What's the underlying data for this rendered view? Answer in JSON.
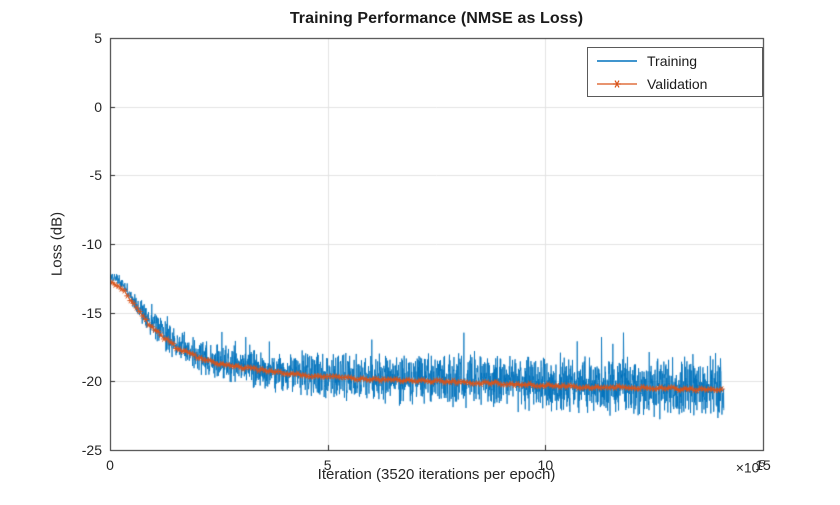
{
  "chart_data": {
    "type": "line",
    "title": "Training Performance (NMSE as Loss)",
    "xlabel": "Iteration (3520 iterations per epoch)",
    "ylabel": "Loss (dB)",
    "x_exponent": {
      "base": "×10",
      "power": "5"
    },
    "xlim": [
      0,
      15
    ],
    "ylim": [
      -25,
      5
    ],
    "xticks": [
      0,
      5,
      10,
      15
    ],
    "yticks": [
      5,
      0,
      -5,
      -10,
      -15,
      -20,
      -25
    ],
    "grid": true,
    "axis_color": "#262626",
    "grid_color": "#e3e3e3",
    "x_units_per_tick_label": 100000,
    "legend": {
      "location": "northeast"
    },
    "series": [
      {
        "name": "Training",
        "color": "#0072BD",
        "style": "noisy-line",
        "initial_spike": {
          "x": 0,
          "y_top": 5
        },
        "x_end": 14.1,
        "mean_curve": {
          "x": [
            0,
            0.15,
            0.3,
            0.5,
            0.8,
            1.0,
            1.5,
            2.0,
            2.5,
            3.0,
            3.5,
            4.0,
            5.0,
            6.0,
            7.0,
            8.0,
            9.0,
            10.0,
            11.0,
            12.0,
            13.0,
            14.1
          ],
          "y": [
            -12.4,
            -12.5,
            -13.0,
            -13.9,
            -15.3,
            -16.0,
            -17.3,
            -18.1,
            -18.6,
            -18.9,
            -19.1,
            -19.3,
            -19.6,
            -19.75,
            -19.85,
            -19.95,
            -20.05,
            -20.2,
            -20.3,
            -20.35,
            -20.45,
            -20.5
          ]
        },
        "noise_halfwidth": {
          "x": [
            0,
            0.3,
            0.6,
            1.0,
            1.5,
            2.0,
            3.0,
            5.0,
            8.0,
            11.0,
            14.1
          ],
          "hw": [
            0.4,
            0.5,
            0.8,
            1.1,
            1.3,
            1.4,
            1.6,
            1.9,
            2.1,
            2.3,
            2.4
          ]
        }
      },
      {
        "name": "Validation",
        "color": "#D95319",
        "style": "line-with-asterisk-markers",
        "marker": "*",
        "marker_spacing": 0.07,
        "x_end": 14.07,
        "curve": {
          "x": [
            0,
            0.15,
            0.3,
            0.5,
            0.8,
            1.0,
            1.5,
            2.0,
            2.5,
            3.0,
            3.5,
            4.0,
            5.0,
            6.0,
            7.0,
            8.0,
            9.0,
            10.0,
            11.0,
            12.0,
            13.0,
            14.07
          ],
          "y": [
            -12.8,
            -12.9,
            -13.3,
            -14.2,
            -15.5,
            -16.2,
            -17.5,
            -18.2,
            -18.7,
            -19.0,
            -19.2,
            -19.4,
            -19.7,
            -19.85,
            -19.95,
            -20.05,
            -20.15,
            -20.3,
            -20.4,
            -20.45,
            -20.55,
            -20.65
          ]
        }
      }
    ]
  }
}
